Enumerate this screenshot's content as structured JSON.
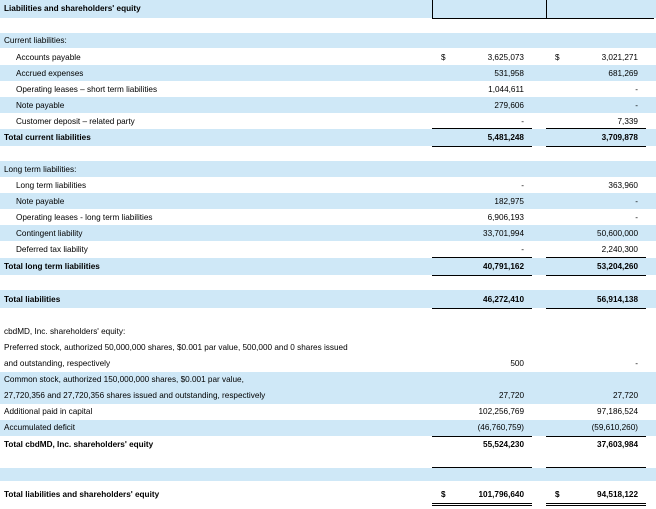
{
  "header": {
    "title": "Liabilities and shareholders' equity"
  },
  "current": {
    "heading": "Current liabilities:",
    "accounts_payable": {
      "label": "Accounts payable",
      "c1_dollar": "$",
      "v1": "3,625,073",
      "c2_dollar": "$",
      "v2": "3,021,271"
    },
    "accrued": {
      "label": "Accrued expenses",
      "v1": "531,958",
      "v2": "681,269"
    },
    "op_leases_short": {
      "label": "Operating leases – short term liabilities",
      "v1": "1,044,611",
      "v2": "-"
    },
    "note_payable": {
      "label": "Note payable",
      "v1": "279,606",
      "v2": "-"
    },
    "customer_deposit": {
      "label": "Customer deposit – related party",
      "v1": "-",
      "v2": "7,339"
    },
    "total": {
      "label": "Total current liabilities",
      "v1": "5,481,248",
      "v2": "3,709,878"
    }
  },
  "longterm": {
    "heading": "Long term liabilities:",
    "lt_liabilities": {
      "label": "Long term liabilities",
      "v1": "-",
      "v2": "363,960"
    },
    "note_payable": {
      "label": "Note payable",
      "v1": "182,975",
      "v2": "-"
    },
    "op_leases_long": {
      "label": "Operating leases - long term liabilities",
      "v1": "6,906,193",
      "v2": "-"
    },
    "contingent": {
      "label": "Contingent liability",
      "v1": "33,701,994",
      "v2": "50,600,000"
    },
    "deferred_tax": {
      "label": "Deferred tax liability",
      "v1": "-",
      "v2": "2,240,300"
    },
    "total": {
      "label": "Total long term liabilities",
      "v1": "40,791,162",
      "v2": "53,204,260"
    }
  },
  "total_liabilities": {
    "label": "Total liabilities",
    "v1": "46,272,410",
    "v2": "56,914,138"
  },
  "equity": {
    "heading": "cbdMD, Inc. shareholders' equity:",
    "preferred_line1": "Preferred stock, authorized 50,000,000 shares, $0.001 par value, 500,000 and 0 shares issued",
    "preferred_line2": "and outstanding, respectively",
    "preferred_v1": "500",
    "preferred_v2": "-",
    "common_line1": "Common stock, authorized 150,000,000 shares, $0.001 par value,",
    "common_line2": "27,720,356 and 27,720,356 shares issued and outstanding, respectively",
    "common_v1": "27,720",
    "common_v2": "27,720",
    "apic": {
      "label": "Additional paid in capital",
      "v1": "102,256,769",
      "v2": "97,186,524"
    },
    "deficit": {
      "label": "Accumulated deficit",
      "v1": "(46,760,759)",
      "v2": "(59,610,260)"
    },
    "total": {
      "label": "Total cbdMD, Inc. shareholders' equity",
      "v1": "55,524,230",
      "v2": "37,603,984"
    }
  },
  "grand_total": {
    "label": "Total liabilities and shareholders' equity",
    "c1_dollar": "$",
    "v1": "101,796,640",
    "c2_dollar": "$",
    "v2": "94,518,122"
  },
  "colors": {
    "shade": "#cfe8f7"
  }
}
